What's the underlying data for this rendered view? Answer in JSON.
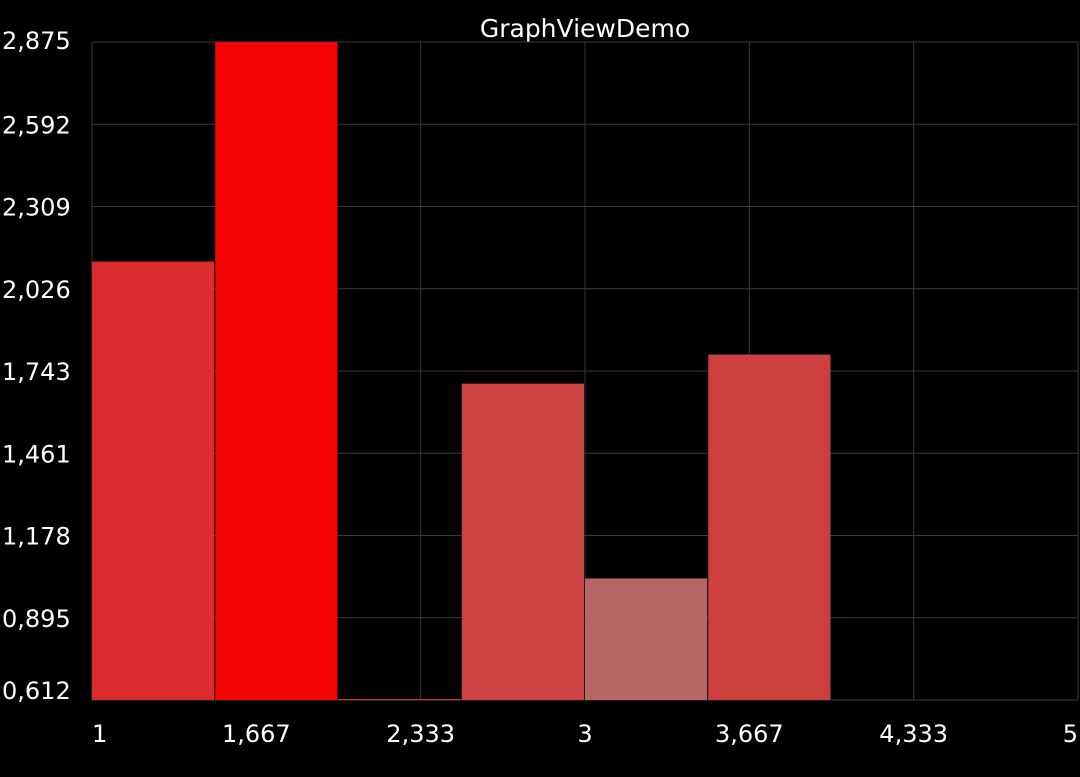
{
  "chart_data": {
    "type": "bar",
    "title": "GraphViewDemo",
    "xlabel": "",
    "ylabel": "",
    "x_tick_labels": [
      "1",
      "1,667",
      "2,333",
      "3",
      "3,667",
      "4,333",
      "5"
    ],
    "y_tick_labels": [
      "2,875",
      "2,592",
      "2,309",
      "2,026",
      "1,743",
      "1,461",
      "1,178",
      "0,895",
      "0,612"
    ],
    "x_range": [
      1,
      5
    ],
    "ylim": [
      0.612,
      2.875
    ],
    "grid": true,
    "bars": [
      {
        "x": 1.0,
        "value": 2.12,
        "color": "#dc2b2c"
      },
      {
        "x": 1.5,
        "value": 2.875,
        "color": "#f50404"
      },
      {
        "x": 2.0,
        "value": 0.612,
        "color": "#d93a3a"
      },
      {
        "x": 2.5,
        "value": 1.7,
        "color": "#cd4444"
      },
      {
        "x": 3.0,
        "value": 1.03,
        "color": "#b76666"
      },
      {
        "x": 3.5,
        "value": 1.8,
        "color": "#ce4040"
      }
    ],
    "bar_width": 0.5,
    "colors": {
      "background": "#000000",
      "grid": "#3a3a3a",
      "text": "#ffffff"
    }
  }
}
